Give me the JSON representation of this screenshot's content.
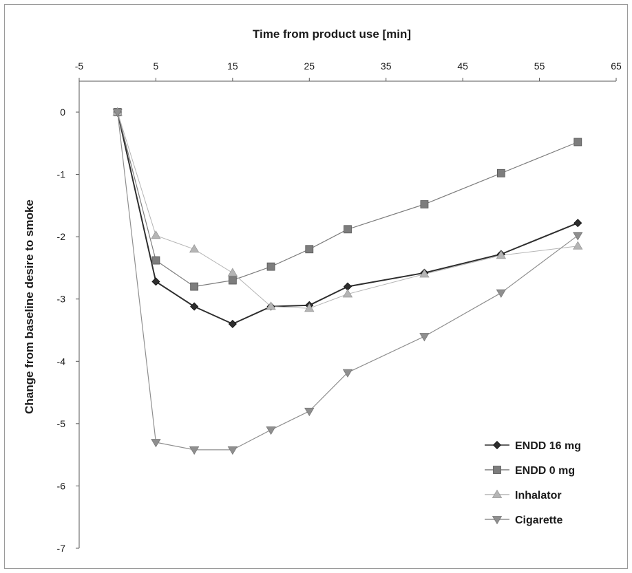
{
  "chart_data": {
    "type": "line",
    "title": "",
    "xlabel": "Time from product use [min]",
    "ylabel": "Change from baseline desire to smoke",
    "x_axis_position": "top",
    "xlim": [
      -5,
      65
    ],
    "ylim": [
      -7,
      0
    ],
    "xticks": [
      -5,
      5,
      15,
      25,
      35,
      45,
      55,
      65
    ],
    "yticks": [
      0,
      -1,
      -2,
      -3,
      -4,
      -5,
      -6,
      -7
    ],
    "grid": false,
    "legend_position": "bottom-right",
    "series": [
      {
        "name": "ENDD 16 mg",
        "marker": "diamond",
        "color": "#2e2e2e",
        "x": [
          0,
          5,
          10,
          15,
          20,
          25,
          30,
          40,
          50,
          60
        ],
        "y": [
          0,
          -2.72,
          -3.12,
          -3.4,
          -3.12,
          -3.1,
          -2.8,
          -2.58,
          -2.28,
          -1.78
        ]
      },
      {
        "name": "ENDD 0 mg",
        "marker": "square",
        "color": "#7d7d7d",
        "x": [
          0,
          5,
          10,
          15,
          20,
          25,
          30,
          40,
          50,
          60
        ],
        "y": [
          0,
          -2.38,
          -2.8,
          -2.7,
          -2.48,
          -2.2,
          -1.88,
          -1.48,
          -0.98,
          -0.48
        ]
      },
      {
        "name": "Inhalator",
        "marker": "triangle-up",
        "color": "#b5b5b5",
        "x": [
          0,
          5,
          10,
          15,
          20,
          25,
          30,
          40,
          50,
          60
        ],
        "y": [
          0,
          -1.98,
          -2.2,
          -2.58,
          -3.12,
          -3.15,
          -2.92,
          -2.6,
          -2.3,
          -2.15
        ]
      },
      {
        "name": "Cigarette",
        "marker": "triangle-down",
        "color": "#8f8f8f",
        "x": [
          0,
          5,
          10,
          15,
          20,
          25,
          30,
          40,
          50,
          60
        ],
        "y": [
          0,
          -5.3,
          -5.42,
          -5.42,
          -5.1,
          -4.8,
          -4.18,
          -3.6,
          -2.9,
          -1.98
        ]
      }
    ]
  }
}
